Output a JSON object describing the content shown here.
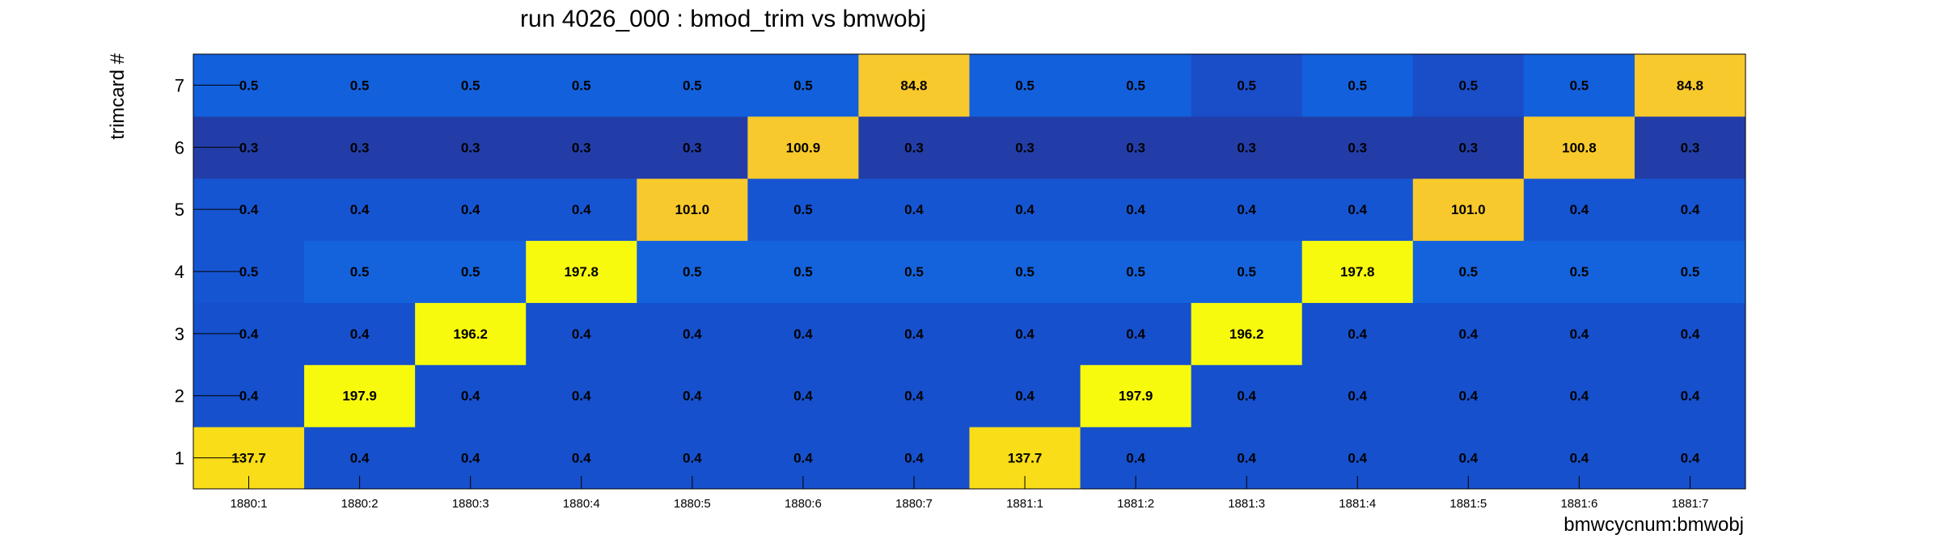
{
  "chart_data": {
    "type": "heatmap",
    "title": "run 4026_000 : bmod_trim vs bmwobj",
    "xlabel": "bmwcycnum:bmwobj",
    "ylabel": "trimcard #",
    "x_categories": [
      "1880:1",
      "1880:2",
      "1880:3",
      "1880:4",
      "1880:5",
      "1880:6",
      "1880:7",
      "1881:1",
      "1881:2",
      "1881:3",
      "1881:4",
      "1881:5",
      "1881:6",
      "1881:7"
    ],
    "y_categories": [
      "1",
      "2",
      "3",
      "4",
      "5",
      "6",
      "7"
    ],
    "values": [
      [
        137.7,
        0.4,
        0.4,
        0.4,
        0.4,
        0.4,
        0.4,
        137.7,
        0.4,
        0.4,
        0.4,
        0.4,
        0.4,
        0.4
      ],
      [
        0.4,
        197.9,
        0.4,
        0.4,
        0.4,
        0.4,
        0.4,
        0.4,
        197.9,
        0.4,
        0.4,
        0.4,
        0.4,
        0.4
      ],
      [
        0.4,
        0.4,
        196.2,
        0.4,
        0.4,
        0.4,
        0.4,
        0.4,
        0.4,
        196.2,
        0.4,
        0.4,
        0.4,
        0.4
      ],
      [
        0.5,
        0.5,
        0.5,
        197.8,
        0.5,
        0.5,
        0.5,
        0.5,
        0.5,
        0.5,
        197.8,
        0.5,
        0.5,
        0.5
      ],
      [
        0.4,
        0.4,
        0.4,
        0.4,
        101.0,
        0.5,
        0.4,
        0.4,
        0.4,
        0.4,
        0.4,
        101.0,
        0.4,
        0.4
      ],
      [
        0.3,
        0.3,
        0.3,
        0.3,
        0.3,
        100.9,
        0.3,
        0.3,
        0.3,
        0.3,
        0.3,
        0.3,
        100.8,
        0.3
      ],
      [
        0.5,
        0.5,
        0.5,
        0.5,
        0.5,
        0.5,
        84.8,
        0.5,
        0.5,
        0.5,
        0.5,
        0.5,
        0.5,
        84.8
      ]
    ],
    "value_decimals": 1,
    "grid": false
  },
  "cell_colors": {
    "row_7_low_a": "#1360dc",
    "row_7_low_b": "#1a4dc8",
    "row_6_low": "#233da8",
    "row_5_low": "#1655d2",
    "row_4_low_a": "#1655d2",
    "row_4_low_b": "#1463dc",
    "row_3_low": "#1650cc",
    "row_2_low": "#1650cc",
    "row_1_low": "#1650cc",
    "peak_gold": "#f8c92c",
    "peak_mid": "#f8dd18",
    "peak_yellow": "#f8fa0e"
  }
}
